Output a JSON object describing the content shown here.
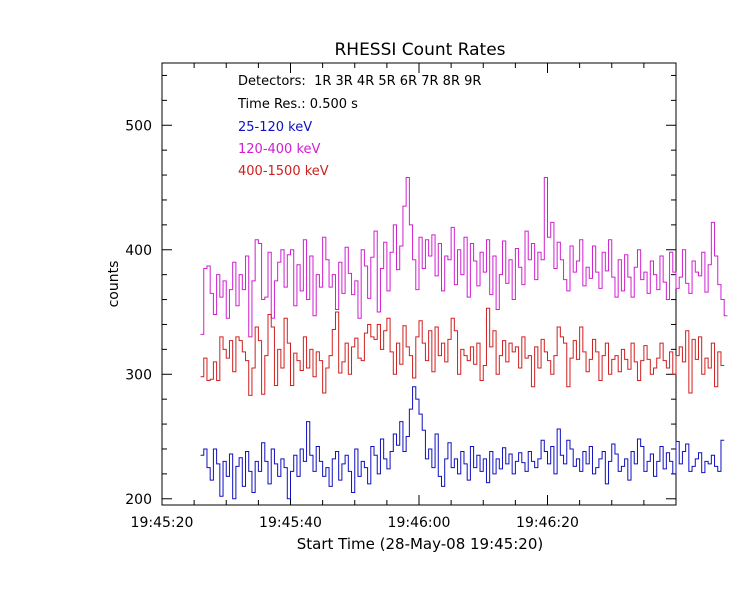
{
  "chart_data": {
    "type": "line",
    "title": "RHESSI Count Rates",
    "xlabel": "Start Time (28-May-08 19:45:20)",
    "ylabel": "counts",
    "x_ticks": [
      "19:45:20",
      "19:45:40",
      "19:46:00",
      "19:46:20"
    ],
    "y_ticks": [
      200,
      300,
      400,
      500
    ],
    "xlim": [
      0,
      80
    ],
    "ylim": [
      195,
      550
    ],
    "annotations": [
      "Detectors:  1R 3R 4R 5R 6R 7R 8R 9R",
      "Time Res.: 0.500 s"
    ],
    "grid": false,
    "step": 0.5,
    "x_start": 6,
    "series": [
      {
        "name": "25-120 keV",
        "color": "#1010c0",
        "values": [
          235,
          240,
          225,
          215,
          240,
          228,
          202,
          230,
          218,
          236,
          200,
          226,
          233,
          210,
          238,
          222,
          205,
          230,
          222,
          245,
          230,
          212,
          240,
          228,
          218,
          232,
          225,
          200,
          222,
          235,
          218,
          240,
          230,
          262,
          235,
          222,
          242,
          230,
          218,
          225,
          210,
          232,
          238,
          215,
          228,
          235,
          222,
          205,
          240,
          218,
          230,
          225,
          212,
          242,
          235,
          220,
          248,
          232,
          224,
          238,
          252,
          243,
          262,
          238,
          250,
          272,
          290,
          280,
          268,
          255,
          232,
          240,
          225,
          252,
          218,
          210,
          232,
          245,
          225,
          232,
          220,
          238,
          228,
          215,
          242,
          225,
          235,
          222,
          232,
          213,
          238,
          220,
          232,
          224,
          241,
          228,
          236,
          220,
          230,
          237,
          229,
          222,
          238,
          230,
          225,
          232,
          247,
          238,
          228,
          242,
          220,
          256,
          235,
          228,
          247,
          240,
          226,
          232,
          222,
          238,
          228,
          242,
          220,
          225,
          232,
          238,
          212,
          230,
          244,
          236,
          222,
          226,
          232,
          215,
          238,
          228,
          248,
          242,
          222,
          230,
          236,
          218,
          230,
          242,
          224,
          237,
          230,
          220,
          246,
          228,
          238,
          244,
          222,
          226,
          232,
          237,
          221,
          230,
          228,
          235,
          226,
          222,
          247
        ]
      },
      {
        "name": "120-400 keV",
        "color": "#d020d0",
        "values": [
          332,
          385,
          387,
          365,
          348,
          380,
          362,
          375,
          345,
          368,
          390,
          355,
          380,
          368,
          395,
          330,
          375,
          408,
          405,
          360,
          362,
          398,
          345,
          375,
          390,
          400,
          370,
          396,
          400,
          355,
          388,
          367,
          408,
          360,
          395,
          347,
          380,
          370,
          410,
          392,
          370,
          380,
          352,
          390,
          365,
          402,
          381,
          364,
          375,
          345,
          400,
          387,
          361,
          394,
          415,
          350,
          385,
          406,
          367,
          398,
          420,
          384,
          403,
          435,
          458,
          420,
          392,
          368,
          410,
          385,
          408,
          395,
          412,
          379,
          405,
          367,
          395,
          392,
          418,
          372,
          400,
          380,
          410,
          362,
          405,
          391,
          371,
          398,
          382,
          408,
          364,
          395,
          352,
          380,
          407,
          373,
          392,
          360,
          401,
          386,
          372,
          415,
          392,
          405,
          376,
          398,
          392,
          458,
          410,
          422,
          385,
          406,
          392,
          376,
          367,
          403,
          382,
          391,
          408,
          371,
          386,
          377,
          403,
          382,
          369,
          398,
          383,
          408,
          378,
          362,
          392,
          367,
          396,
          378,
          362,
          386,
          400,
          376,
          382,
          365,
          391,
          380,
          368,
          395,
          374,
          360,
          398,
          382,
          369,
          378,
          400,
          373,
          365,
          391,
          382,
          379,
          398,
          366,
          388,
          422,
          395,
          372,
          360,
          347
        ]
      },
      {
        "name": "400-1500 keV",
        "color": "#d02020",
        "values": [
          298,
          313,
          295,
          296,
          310,
          295,
          330,
          320,
          313,
          327,
          302,
          330,
          327,
          318,
          311,
          283,
          305,
          338,
          327,
          284,
          315,
          348,
          338,
          291,
          320,
          305,
          345,
          325,
          291,
          317,
          311,
          303,
          330,
          305,
          320,
          298,
          318,
          311,
          285,
          305,
          315,
          336,
          350,
          301,
          310,
          325,
          300,
          322,
          329,
          313,
          311,
          333,
          340,
          330,
          328,
          340,
          320,
          335,
          345,
          318,
          300,
          325,
          308,
          339,
          322,
          315,
          297,
          330,
          343,
          325,
          311,
          335,
          302,
          338,
          315,
          325,
          310,
          328,
          345,
          335,
          300,
          320,
          315,
          311,
          322,
          308,
          325,
          295,
          307,
          353,
          322,
          335,
          300,
          315,
          327,
          310,
          325,
          318,
          322,
          305,
          330,
          313,
          315,
          290,
          322,
          305,
          328,
          318,
          311,
          300,
          315,
          338,
          330,
          325,
          290,
          313,
          327,
          312,
          338,
          318,
          302,
          312,
          328,
          318,
          295,
          315,
          325,
          300,
          312,
          315,
          302,
          320,
          312,
          304,
          325,
          310,
          295,
          311,
          323,
          312,
          300,
          305,
          313,
          325,
          311,
          305,
          318,
          300,
          315,
          322,
          310,
          335,
          285,
          328,
          312,
          330,
          300,
          313,
          305,
          325,
          290,
          318,
          307
        ]
      }
    ]
  }
}
